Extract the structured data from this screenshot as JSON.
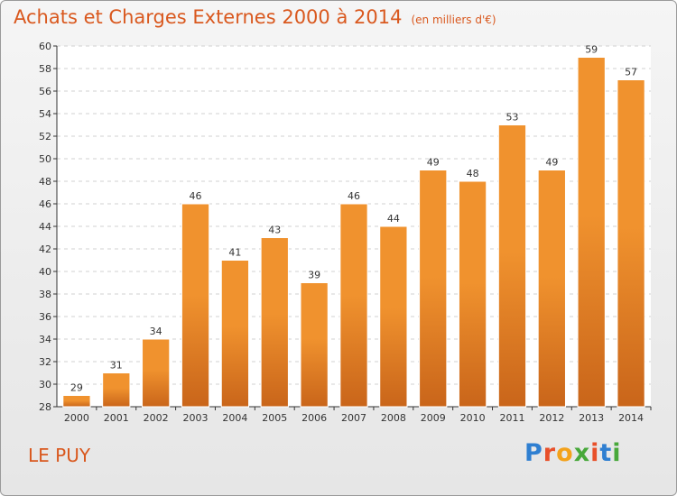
{
  "header": {
    "title": "Achats et Charges Externes 2000 à 2014",
    "subtitle": "(en milliers d'€)"
  },
  "footer": {
    "city": "LE PUY",
    "logo_letters": [
      "P",
      "r",
      "o",
      "x",
      "i",
      "t",
      "i"
    ],
    "logo_colors": [
      "#2f7fd1",
      "#e8502a",
      "#f3a21b",
      "#47a83a",
      "#e8502a",
      "#2f7fd1",
      "#47a83a"
    ]
  },
  "chart_data": {
    "type": "bar",
    "title": "Achats et Charges Externes 2000 à 2014",
    "subtitle": "(en milliers d'€)",
    "xlabel": "",
    "ylabel": "",
    "categories": [
      "2000",
      "2001",
      "2002",
      "2003",
      "2004",
      "2005",
      "2006",
      "2007",
      "2008",
      "2009",
      "2010",
      "2011",
      "2012",
      "2013",
      "2014"
    ],
    "values": [
      29,
      31,
      34,
      46,
      41,
      43,
      39,
      46,
      44,
      49,
      48,
      53,
      49,
      59,
      57
    ],
    "ylim": [
      28,
      60
    ],
    "yticks": [
      "28",
      "30",
      "32",
      "34",
      "36",
      "38",
      "40",
      "42",
      "44",
      "46",
      "48",
      "50",
      "52",
      "54",
      "56",
      "58",
      "60"
    ],
    "grid": true,
    "legend": "none",
    "bar_color": "#f0922e",
    "bar_color_dark": "#c9651a"
  }
}
